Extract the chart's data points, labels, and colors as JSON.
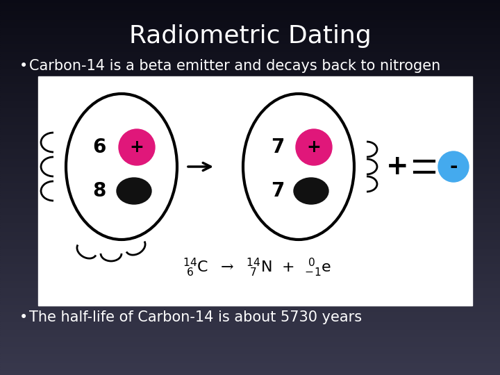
{
  "title": "Radiometric Dating",
  "title_fontsize": 26,
  "title_color": "#ffffff",
  "bullet1": "Carbon-14 is a beta emitter and decays back to nitrogen",
  "bullet2": "The half-life of Carbon-14 is about 5730 years",
  "bullet_fontsize": 15,
  "bullet_color": "#ffffff",
  "bg_top": "#3a3d4a",
  "bg_bottom": "#05060e",
  "image_box_color": "#ffffff",
  "proton_color": "#e0177a",
  "neutron_color": "#111111",
  "electron_color": "#44aaee"
}
